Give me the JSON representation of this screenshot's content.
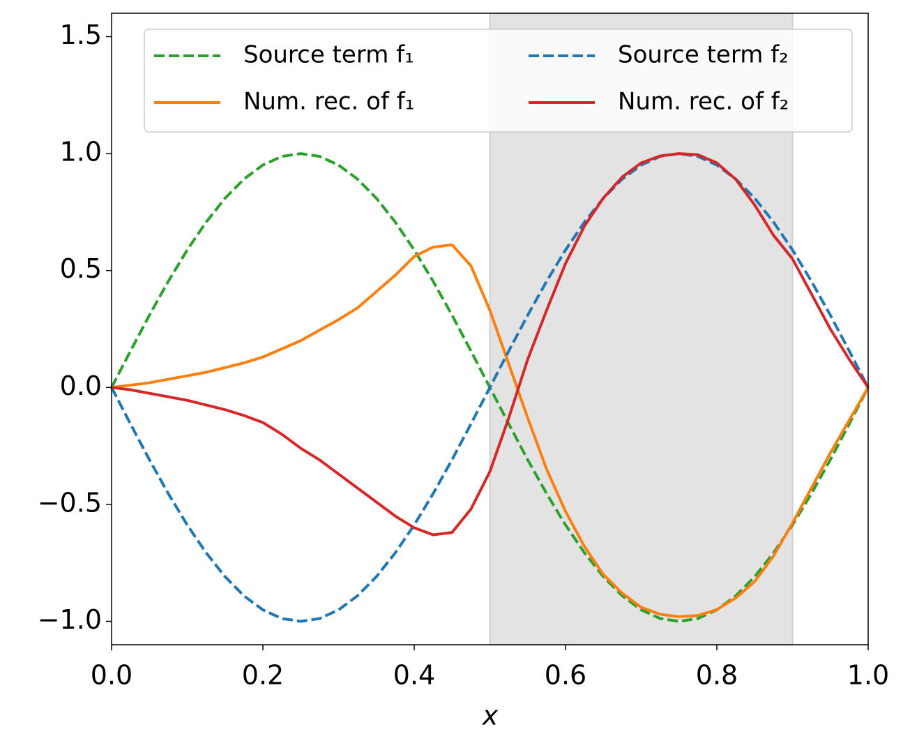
{
  "chart_data": {
    "type": "line",
    "xlabel": "x",
    "x": [
      0,
      0.025,
      0.05,
      0.075,
      0.1,
      0.125,
      0.15,
      0.175,
      0.2,
      0.225,
      0.25,
      0.275,
      0.3,
      0.325,
      0.35,
      0.375,
      0.4,
      0.425,
      0.45,
      0.475,
      0.5,
      0.525,
      0.55,
      0.575,
      0.6,
      0.625,
      0.65,
      0.675,
      0.7,
      0.725,
      0.75,
      0.775,
      0.8,
      0.825,
      0.85,
      0.875,
      0.9,
      0.925,
      0.95,
      0.975,
      1
    ],
    "series": [
      {
        "name": "Source term f₁",
        "color": "#2ca02c",
        "linestyle": "dashed",
        "values": [
          0,
          0.156,
          0.309,
          0.454,
          0.588,
          0.707,
          0.809,
          0.891,
          0.951,
          0.988,
          1,
          0.988,
          0.951,
          0.891,
          0.809,
          0.707,
          0.588,
          0.454,
          0.309,
          0.156,
          0,
          -0.156,
          -0.309,
          -0.454,
          -0.588,
          -0.707,
          -0.809,
          -0.891,
          -0.951,
          -0.988,
          -1,
          -0.988,
          -0.951,
          -0.891,
          -0.809,
          -0.707,
          -0.588,
          -0.454,
          -0.309,
          -0.156,
          0
        ]
      },
      {
        "name": "Num. rec. of f₁",
        "color": "#ff7f0e",
        "linestyle": "solid",
        "values": [
          0,
          0.01,
          0.02,
          0.035,
          0.05,
          0.065,
          0.085,
          0.105,
          0.13,
          0.165,
          0.2,
          0.245,
          0.29,
          0.34,
          0.41,
          0.48,
          0.56,
          0.6,
          0.61,
          0.52,
          0.33,
          0.1,
          -0.13,
          -0.35,
          -0.53,
          -0.68,
          -0.8,
          -0.88,
          -0.94,
          -0.97,
          -0.98,
          -0.975,
          -0.95,
          -0.9,
          -0.83,
          -0.72,
          -0.58,
          -0.43,
          -0.28,
          -0.14,
          0
        ]
      },
      {
        "name": "Source term f₂",
        "color": "#1f77b4",
        "linestyle": "dashed",
        "values": [
          0,
          -0.156,
          -0.309,
          -0.454,
          -0.588,
          -0.707,
          -0.809,
          -0.891,
          -0.951,
          -0.988,
          -1,
          -0.988,
          -0.951,
          -0.891,
          -0.809,
          -0.707,
          -0.588,
          -0.454,
          -0.309,
          -0.156,
          0,
          0.156,
          0.309,
          0.454,
          0.588,
          0.707,
          0.809,
          0.891,
          0.951,
          0.988,
          1,
          0.988,
          0.951,
          0.891,
          0.809,
          0.707,
          0.588,
          0.454,
          0.309,
          0.156,
          0
        ]
      },
      {
        "name": "Num. rec. of f₂",
        "color": "#d62728",
        "linestyle": "solid",
        "values": [
          0,
          -0.01,
          -0.025,
          -0.04,
          -0.055,
          -0.075,
          -0.095,
          -0.12,
          -0.15,
          -0.2,
          -0.26,
          -0.31,
          -0.37,
          -0.43,
          -0.49,
          -0.55,
          -0.6,
          -0.63,
          -0.62,
          -0.52,
          -0.36,
          -0.13,
          0.12,
          0.33,
          0.53,
          0.69,
          0.81,
          0.9,
          0.96,
          0.99,
          1.0,
          0.995,
          0.96,
          0.89,
          0.78,
          0.65,
          0.55,
          0.4,
          0.25,
          0.12,
          0
        ]
      }
    ],
    "shaded_xrange": [
      0.5,
      0.9
    ],
    "shade_color": "#e3e3e3",
    "xlim": [
      0,
      1
    ],
    "ylim": [
      -1.1,
      1.6
    ],
    "xticks": [
      {
        "value": 0,
        "label": "0.0"
      },
      0.2,
      0.4,
      0.6,
      0.8,
      {
        "value": 1,
        "label": "1.0"
      }
    ],
    "yticks": [
      {
        "value": -1,
        "label": "−1.0"
      },
      {
        "value": -0.5,
        "label": "−0.5"
      },
      {
        "value": 0,
        "label": "0.0"
      },
      0.5,
      {
        "value": 1,
        "label": "1.0"
      },
      1.5
    ],
    "legend": {
      "position": "upper right",
      "columns": 2
    }
  }
}
